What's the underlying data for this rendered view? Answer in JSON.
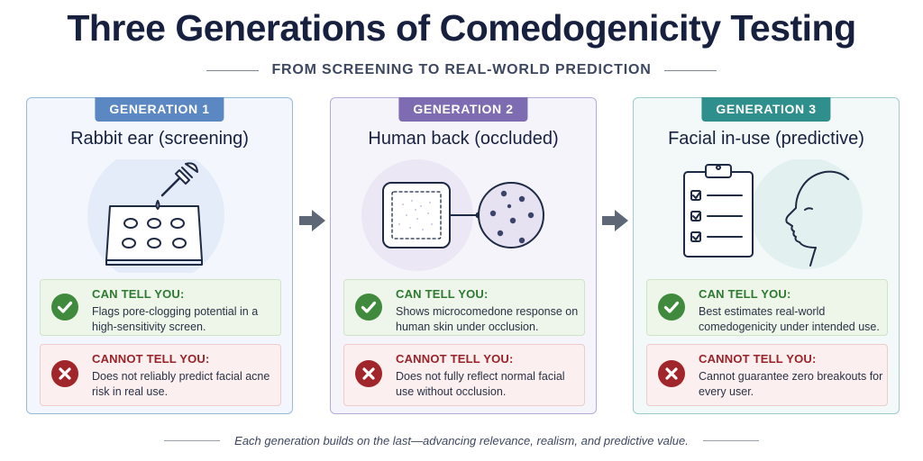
{
  "title": "Three Generations of Comedogenicity Testing",
  "subtitle": "FROM SCREENING TO REAL-WORLD PREDICTION",
  "cards": [
    {
      "badge": "GENERATION 1",
      "title": "Rabbit ear (screening)",
      "can_head": "CAN TELL YOU:",
      "can_text": "Flags pore-clogging potential in a high-sensitivity screen.",
      "cannot_head": "CANNOT TELL YOU:",
      "cannot_text": "Does not reliably predict facial acne risk in real use.",
      "icon": "dropper-over-well-plate"
    },
    {
      "badge": "GENERATION 2",
      "title": "Human back (occluded)",
      "can_head": "CAN TELL YOU:",
      "can_text": "Shows microcomedone response on human skin under occlusion.",
      "cannot_head": "CANNOT TELL YOU:",
      "cannot_text": "Does not fully reflect normal facial use without occlusion.",
      "icon": "occlusion-patch-magnified"
    },
    {
      "badge": "GENERATION 3",
      "title": "Facial in-use (predictive)",
      "can_head": "CAN TELL YOU:",
      "can_text": "Best estimates real-world comedogenicity under intended use.",
      "cannot_head": "CANNOT TELL YOU:",
      "cannot_text": "Cannot guarantee zero breakouts for every user.",
      "icon": "clipboard-and-face-profile"
    }
  ],
  "footer": "Each generation builds on the last—advancing relevance, realism, and predictive value.",
  "colors": {
    "gen1": "#5b87c2",
    "gen2": "#7e6cb3",
    "gen3": "#2f8f8c",
    "can": "#3f8a3d",
    "cannot": "#a0262c"
  }
}
